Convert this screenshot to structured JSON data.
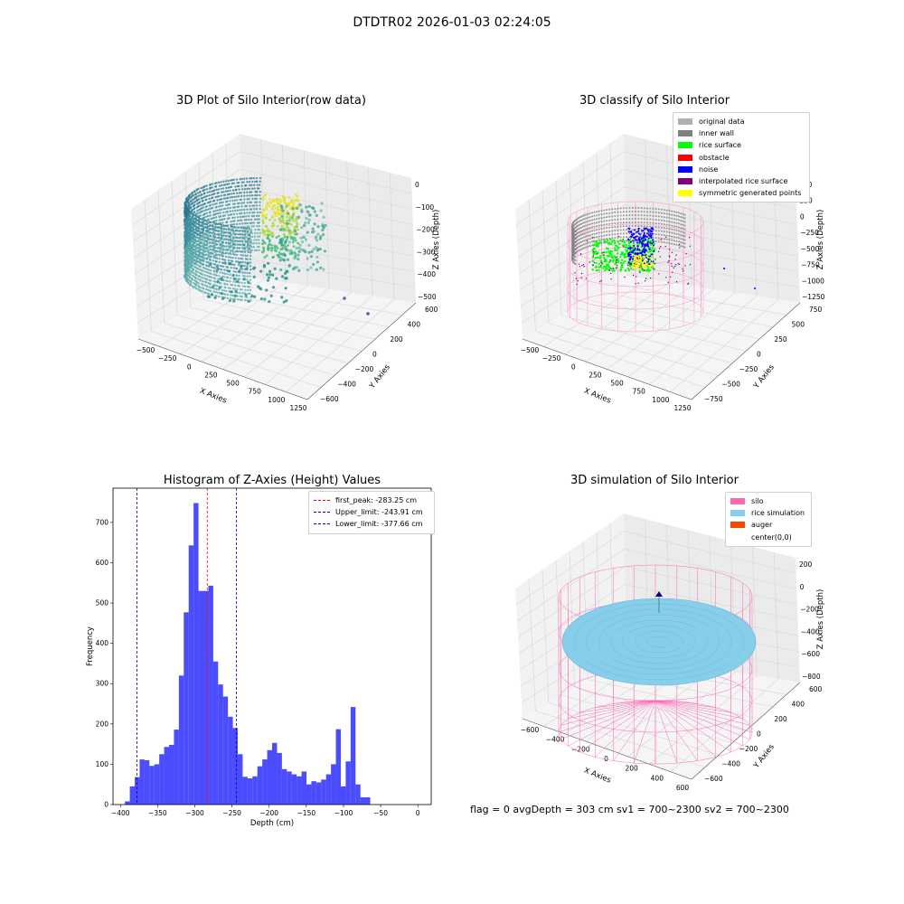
{
  "figure": {
    "suptitle": "DTDTR02 2026-01-03 02:24:05"
  },
  "panels": {
    "raw": {
      "title": "3D Plot of Silo Interior(row data)",
      "xlabel": "X Axies",
      "ylabel": "Y Axies",
      "zlabel": "Z Axies (Depth)",
      "xticks": [
        "−500",
        "−250",
        "0",
        "250",
        "500",
        "750",
        "1000",
        "1250"
      ],
      "yticks": [
        "600",
        "400",
        "200",
        "0",
        "−200",
        "−400",
        "−600"
      ],
      "zticks": [
        "0",
        "−100",
        "−200",
        "−300",
        "−400",
        "−500"
      ]
    },
    "classify": {
      "title": "3D classify of Silo Interior",
      "xlabel": "X Axies",
      "ylabel": "Y Axies",
      "zlabel": "Z Axies (Depth)",
      "xticks": [
        "−500",
        "−250",
        "0",
        "250",
        "500",
        "750",
        "1000",
        "1250"
      ],
      "yticks": [
        "750",
        "500",
        "250",
        "0",
        "−250",
        "−500",
        "−750"
      ],
      "zticks": [
        "500",
        "250",
        "0",
        "−250",
        "−500",
        "−750",
        "−1000",
        "−1250"
      ],
      "legend": [
        {
          "label": "original data",
          "color": "#b0b0b0"
        },
        {
          "label": "inner wall",
          "color": "#808080"
        },
        {
          "label": "rice surface",
          "color": "#00ff00"
        },
        {
          "label": "obstacle",
          "color": "#ff0000"
        },
        {
          "label": "noise",
          "color": "#0000ff"
        },
        {
          "label": "interpolated rice surface",
          "color": "#800080"
        },
        {
          "label": "symmetric generated points",
          "color": "#ffff00"
        }
      ]
    },
    "simulation": {
      "title": "3D simulation of Silo Interior",
      "xlabel": "X Axies",
      "ylabel": "Y Axies",
      "zlabel": "Z Axies (Depth)",
      "xticks": [
        "−600",
        "−400",
        "−200",
        "0",
        "200",
        "400",
        "600"
      ],
      "yticks": [
        "600",
        "400",
        "200",
        "0",
        "−200",
        "−400",
        "−600"
      ],
      "zticks": [
        "200",
        "0",
        "−200",
        "−400",
        "−600",
        "−800"
      ],
      "legend": [
        {
          "label": "silo",
          "color": "#ff69b4"
        },
        {
          "label": "rice simulation",
          "color": "#87ceeb"
        },
        {
          "label": "auger",
          "color": "#ff4500"
        },
        {
          "label": "center(0,0)",
          "color": "#ffffff"
        }
      ],
      "footer": "flag = 0     avgDepth = 303 cm  sv1 = 700~2300  sv2 = 700~2300"
    }
  },
  "chart_data": [
    {
      "type": "bar",
      "title": "Histogram of Z-Axies (Height) Values",
      "xlabel": "Depth (cm)",
      "ylabel": "Frequency",
      "xlim": [
        -410,
        18
      ],
      "ylim": [
        0,
        785
      ],
      "bin_start": -394,
      "bin_width": 6.6,
      "values": [
        8,
        45,
        68,
        112,
        110,
        96,
        100,
        125,
        143,
        148,
        186,
        320,
        477,
        643,
        748,
        530,
        530,
        543,
        355,
        298,
        268,
        218,
        190,
        125,
        69,
        65,
        70,
        95,
        112,
        135,
        153,
        128,
        88,
        82,
        75,
        70,
        82,
        50,
        58,
        55,
        62,
        75,
        100,
        187,
        45,
        107,
        242,
        50,
        18,
        18
      ],
      "xticks": [
        -400,
        -350,
        -300,
        -250,
        -200,
        -150,
        -100,
        -50,
        0
      ],
      "yticks": [
        0,
        100,
        200,
        300,
        400,
        500,
        600,
        700
      ],
      "bar_color": "#0000ff",
      "vlines": [
        {
          "x": -283.25,
          "label": "first_peak: -283.25 cm",
          "color": "#ff0000"
        },
        {
          "x": -243.91,
          "label": "Upper_limit: -243.91 cm",
          "color": "#0000cc"
        },
        {
          "x": -377.66,
          "label": "Lower_limit: -377.66 cm",
          "color": "#0000cc"
        }
      ],
      "legend_position": "top-right"
    }
  ]
}
